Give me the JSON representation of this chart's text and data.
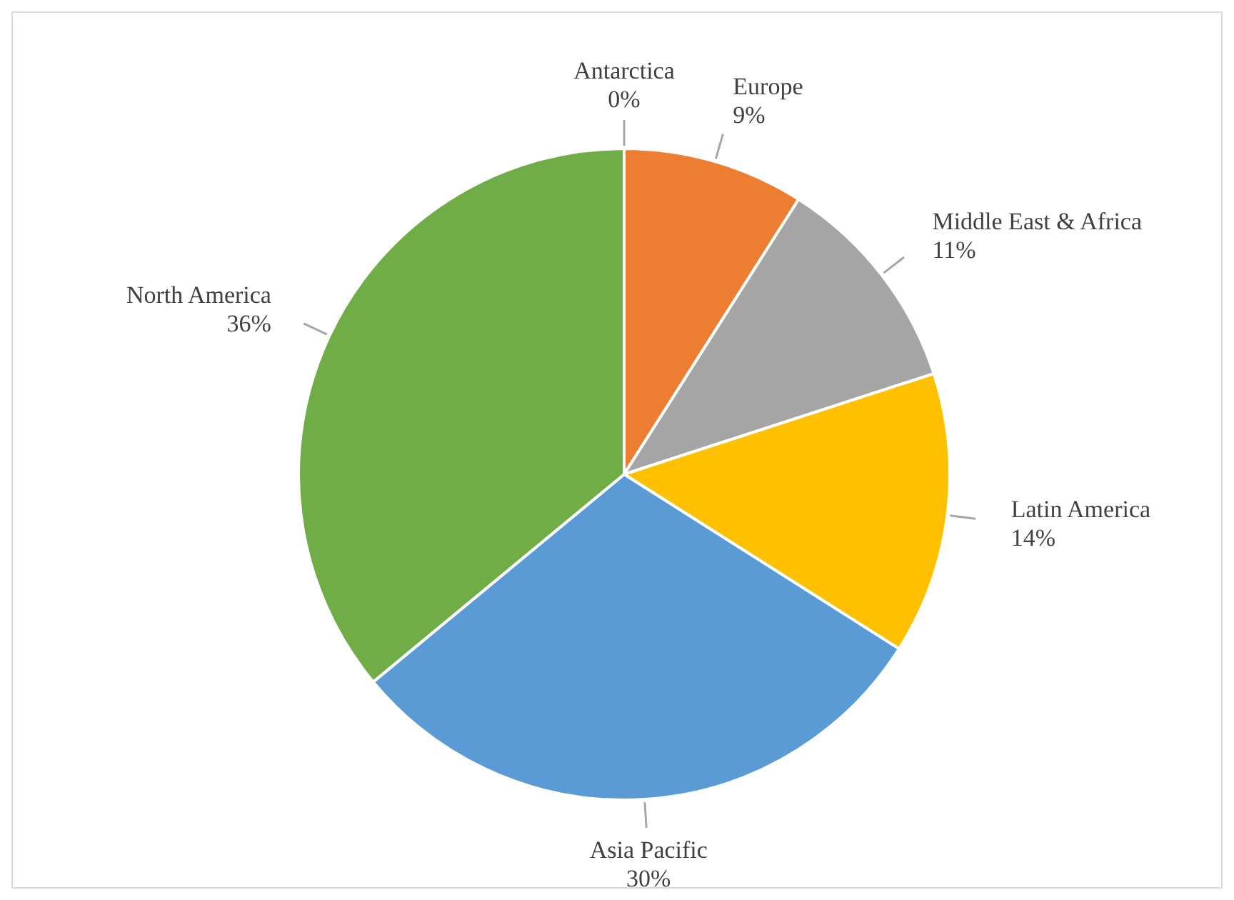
{
  "chart_data": {
    "type": "pie",
    "categories": [
      "Europe",
      "Middle East & Africa",
      "Latin America",
      "Asia Pacific",
      "North America",
      "Antarctica"
    ],
    "values": [
      9,
      11,
      14,
      30,
      36,
      0
    ],
    "colors": [
      "#ed7d31",
      "#a5a5a5",
      "#ffc000",
      "#5b9bd5",
      "#70ad47",
      "#4472c4"
    ],
    "value_labels": [
      "9%",
      "11%",
      "14%",
      "30%",
      "36%",
      "0%"
    ],
    "legend": false
  }
}
